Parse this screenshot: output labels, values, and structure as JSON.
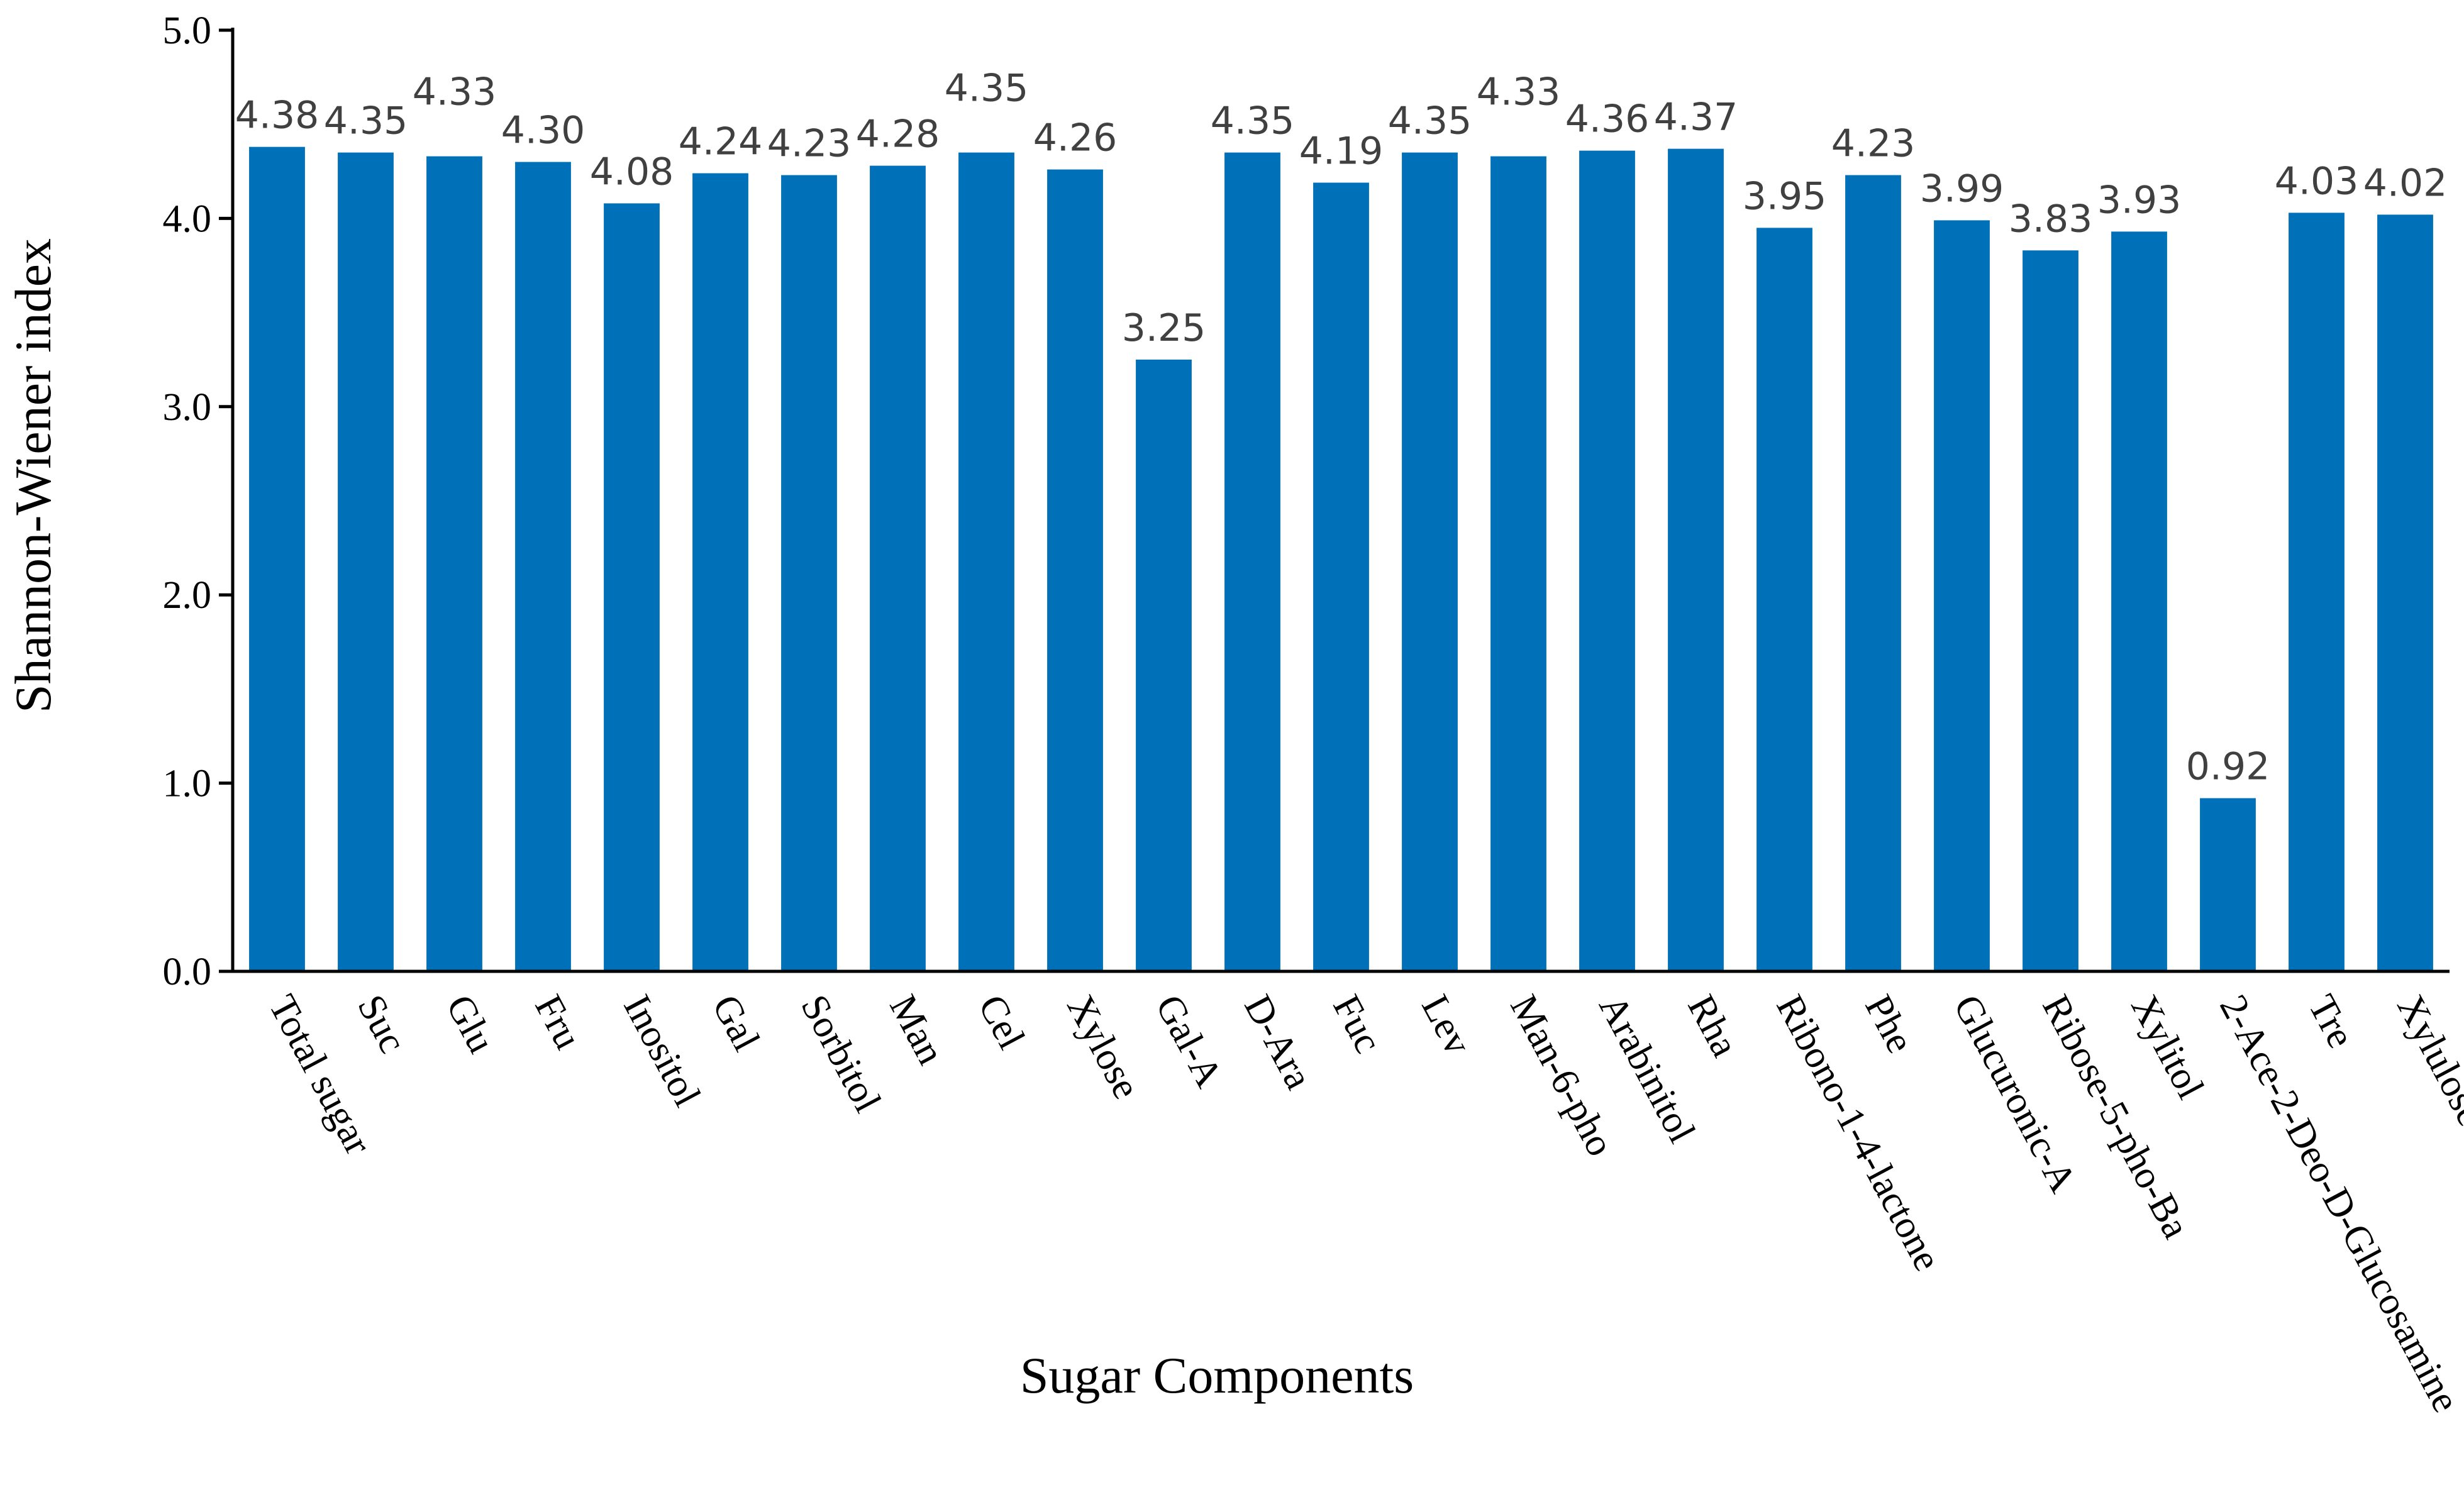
{
  "chart_data": {
    "type": "bar",
    "title": "",
    "xlabel": "Sugar Components",
    "ylabel": "Shannon-Wiener index",
    "ylim": [
      0,
      5
    ],
    "yticks": [
      "0.0",
      "1.0",
      "2.0",
      "3.0",
      "4.0",
      "5.0"
    ],
    "grid": false,
    "legend": "none",
    "bar_color": "#0070B8",
    "categories": [
      "Total sugar",
      "Suc",
      "Glu",
      "Fru",
      "Inositol",
      "Gal",
      "Sorbitol",
      "Man",
      "Cel",
      "Xylose",
      "Gal-A",
      "D-Ara",
      "Fuc",
      "Lev",
      "Man-6-pho",
      "Arabinitol",
      "Rha",
      "Ribono-1-4-lactone",
      "Phe",
      "Glucuronic-A",
      "Ribose-5-pho-Ba",
      "Xylitol",
      "2-Ace-2-Deo-D-Glucosamine",
      "Tre",
      "Xylulose"
    ],
    "values": [
      4.38,
      4.35,
      4.33,
      4.3,
      4.08,
      4.24,
      4.23,
      4.28,
      4.35,
      4.26,
      3.25,
      4.35,
      4.19,
      4.35,
      4.33,
      4.36,
      4.37,
      3.95,
      4.23,
      3.99,
      3.83,
      3.93,
      0.92,
      4.03,
      4.02
    ],
    "data_labels": [
      "4.38",
      "4.35",
      "4.33",
      "4.30",
      "4.08",
      "4.24",
      "4.23",
      "4.28",
      "4.35",
      "4.26",
      "3.25",
      "4.35",
      "4.19",
      "4.35",
      "4.33",
      "4.36",
      "4.37",
      "3.95",
      "4.23",
      "3.99",
      "3.83",
      "3.93",
      "0.92",
      "4.03",
      "4.02"
    ],
    "label_offsets": [
      0,
      0,
      1,
      0,
      0,
      0,
      0,
      0,
      1,
      0,
      0,
      0,
      0,
      0,
      1,
      0,
      0,
      0,
      0,
      0,
      0,
      0,
      0,
      0,
      0
    ]
  }
}
